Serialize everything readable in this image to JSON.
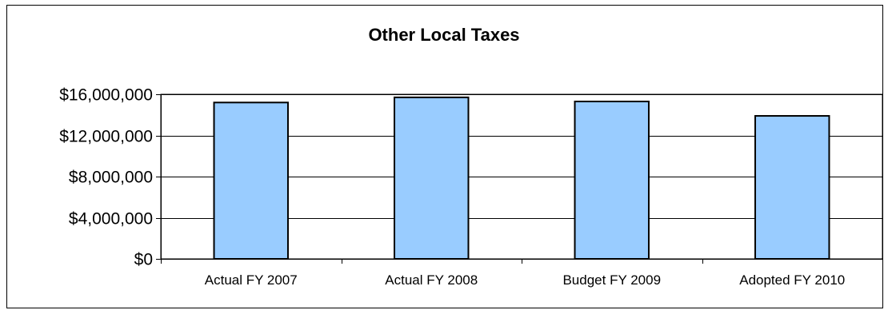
{
  "chart_data": {
    "type": "bar",
    "title": "Other Local Taxes",
    "xlabel": "",
    "ylabel": "",
    "categories": [
      "Actual FY 2007",
      "Actual FY 2008",
      "Budget FY 2009",
      "Adopted FY 2010"
    ],
    "values": [
      15200000,
      15700000,
      15300000,
      13900000
    ],
    "ylim": [
      0,
      16000000
    ],
    "yticks": [
      0,
      4000000,
      8000000,
      12000000,
      16000000
    ],
    "ytick_labels": [
      "$0",
      "$4,000,000",
      "$8,000,000",
      "$12,000,000",
      "$16,000,000"
    ],
    "grid": "horizontal",
    "legend": "none",
    "colors": {
      "bar_fill": "#99ccff",
      "bar_stroke": "#000000",
      "plot_background": "#ffffff",
      "gridline": "#000000"
    }
  }
}
